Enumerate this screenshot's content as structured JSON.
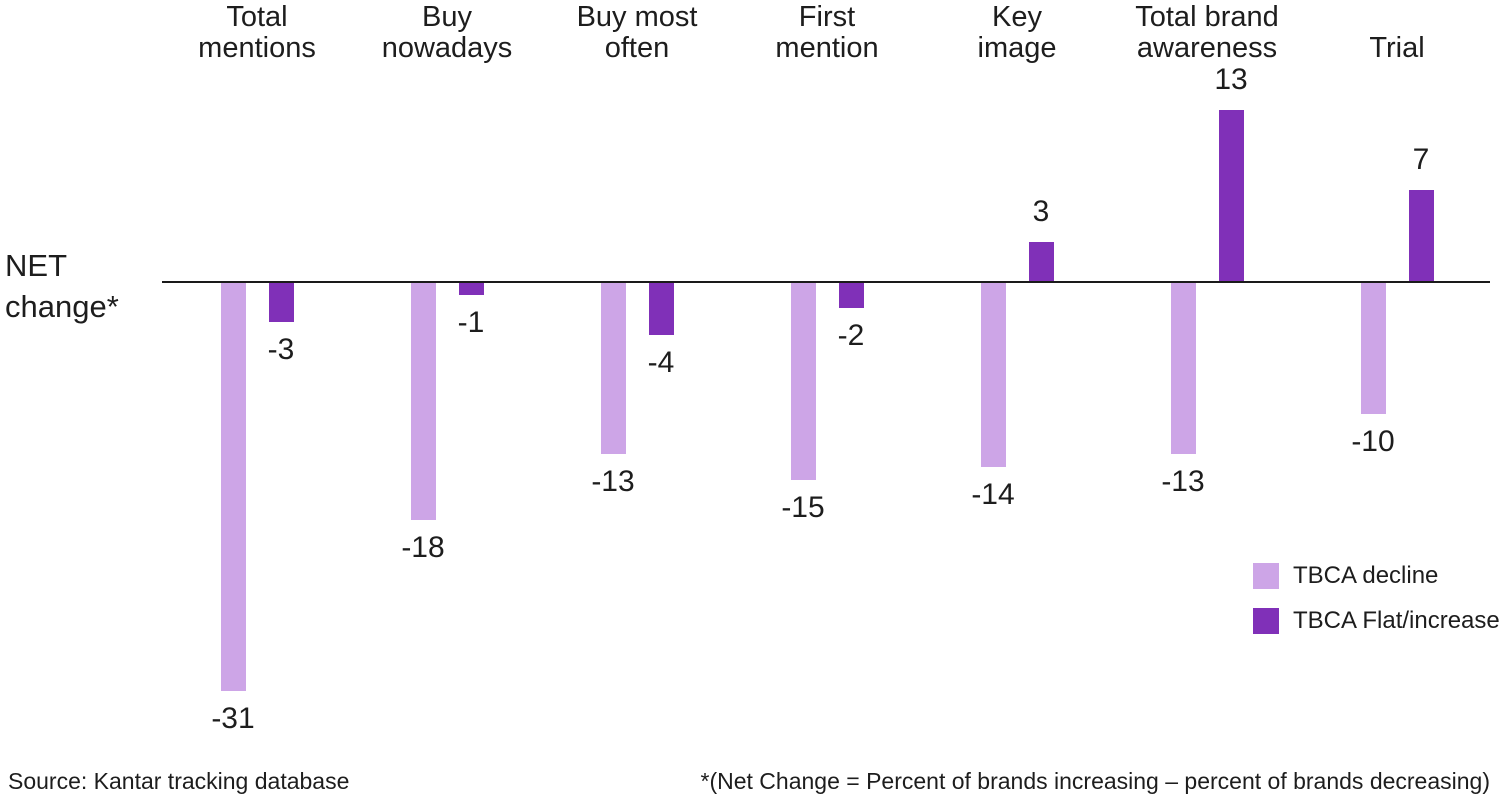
{
  "chart_data": {
    "type": "bar",
    "title": "",
    "axis_label": "NET\nchange*",
    "categories": [
      "Total\nmentions",
      "Buy\nnowadays",
      "Buy most\noften",
      "First\nmention",
      "Key\nimage",
      "Total brand\nawareness",
      "Trial"
    ],
    "series": [
      {
        "name": "TBCA decline",
        "color": "#CDA5E7",
        "values": [
          -31,
          -18,
          -13,
          -15,
          -14,
          -13,
          -10
        ]
      },
      {
        "name": "TBCA Flat/increase",
        "color": "#8030B8",
        "values": [
          -3,
          -1,
          -4,
          -2,
          3,
          13,
          7
        ]
      }
    ],
    "baseline": 0,
    "grid": false,
    "legend_position": "right-middle",
    "value_labels": "shown at bar ends"
  },
  "footer": {
    "source": "Source: Kantar tracking database",
    "note": "*(Net Change = Percent of brands increasing – percent of brands decreasing)"
  },
  "colors": {
    "text": "#1d1d1d",
    "axis": "#1a1a1a",
    "decline": "#CDA5E7",
    "flat_increase": "#8030B8"
  }
}
